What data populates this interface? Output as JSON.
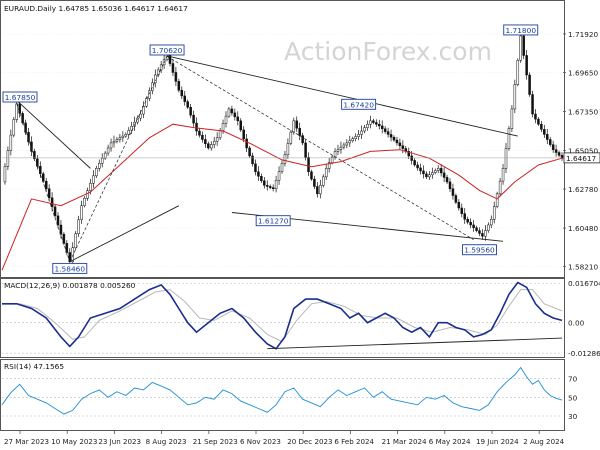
{
  "chart_data": [
    {
      "type": "candlestick",
      "panel": "price",
      "title": "EURAUD.Daily",
      "ohlc_label": "1.64785 1.65036 1.64617 1.64617",
      "watermark": "ActionForex.com",
      "price_axis_ticks": [
        "1.71920",
        "1.69650",
        "1.67350",
        "1.65050",
        "1.64617",
        "1.62780",
        "1.60480",
        "1.58210"
      ],
      "price_axis_values": [
        1.7192,
        1.6965,
        1.6735,
        1.6505,
        1.6278,
        1.6048,
        1.5821
      ],
      "ylim": [
        1.576,
        1.738
      ],
      "last_price": 1.64617,
      "last_price_label": "1.64617",
      "x_axis_labels": [
        "27 Mar 2023",
        "10 May 2023",
        "23 Jun 2023",
        "8 Aug 2023",
        "21 Sep 2023",
        "6 Nov 2023",
        "20 Dec 2023",
        "6 Feb 2024",
        "21 Mar 2024",
        "6 May 2024",
        "19 Jun 2024",
        "2 Aug 2024"
      ],
      "series": [
        {
          "kind": "close",
          "points": [
            [
              0,
              1.632
            ],
            [
              5,
              1.678
            ],
            [
              10,
              1.65
            ],
            [
              15,
              1.628
            ],
            [
              18,
              1.612
            ],
            [
              23,
              1.585
            ],
            [
              27,
              1.618
            ],
            [
              32,
              1.64
            ],
            [
              37,
              1.655
            ],
            [
              42,
              1.66
            ],
            [
              47,
              1.672
            ],
            [
              52,
              1.695
            ],
            [
              56,
              1.707
            ],
            [
              60,
              1.686
            ],
            [
              63,
              1.676
            ],
            [
              66,
              1.662
            ],
            [
              70,
              1.652
            ],
            [
              73,
              1.658
            ],
            [
              77,
              1.675
            ],
            [
              80,
              1.668
            ],
            [
              83,
              1.652
            ],
            [
              86,
              1.638
            ],
            [
              89,
              1.63
            ],
            [
              92,
              1.628
            ],
            [
              96,
              1.648
            ],
            [
              99,
              1.668
            ],
            [
              102,
              1.655
            ],
            [
              104,
              1.638
            ],
            [
              107,
              1.625
            ],
            [
              110,
              1.64
            ],
            [
              113,
              1.65
            ],
            [
              117,
              1.655
            ],
            [
              121,
              1.66
            ],
            [
              125,
              1.668
            ],
            [
              128,
              1.665
            ],
            [
              131,
              1.66
            ],
            [
              134,
              1.655
            ],
            [
              137,
              1.65
            ],
            [
              140,
              1.642
            ],
            [
              144,
              1.635
            ],
            [
              148,
              1.64
            ],
            [
              151,
              1.632
            ],
            [
              154,
              1.62
            ],
            [
              157,
              1.61
            ],
            [
              160,
              1.605
            ],
            [
              163,
              1.6
            ],
            [
              166,
              1.61
            ],
            [
              170,
              1.64
            ],
            [
              173,
              1.675
            ],
            [
              176,
              1.718
            ],
            [
              180,
              1.672
            ],
            [
              184,
              1.66
            ],
            [
              187,
              1.651
            ],
            [
              190,
              1.646
            ]
          ]
        },
        {
          "kind": "moving-average",
          "points": [
            [
              0,
              1.58
            ],
            [
              10,
              1.622
            ],
            [
              20,
              1.618
            ],
            [
              30,
              1.626
            ],
            [
              40,
              1.642
            ],
            [
              50,
              1.658
            ],
            [
              58,
              1.666
            ],
            [
              65,
              1.664
            ],
            [
              75,
              1.662
            ],
            [
              85,
              1.654
            ],
            [
              95,
              1.645
            ],
            [
              105,
              1.641
            ],
            [
              115,
              1.644
            ],
            [
              125,
              1.65
            ],
            [
              135,
              1.651
            ],
            [
              145,
              1.646
            ],
            [
              155,
              1.636
            ],
            [
              162,
              1.627
            ],
            [
              168,
              1.622
            ],
            [
              174,
              1.632
            ],
            [
              182,
              1.642
            ],
            [
              190,
              1.646
            ]
          ]
        }
      ],
      "annotations": [
        {
          "label": "1.67850",
          "value": 1.6785,
          "x": 5
        },
        {
          "label": "1.58460",
          "value": 1.5846,
          "x": 23
        },
        {
          "label": "1.70620",
          "value": 1.7062,
          "x": 56
        },
        {
          "label": "1.61270",
          "value": 1.6127,
          "x": 92
        },
        {
          "label": "1.67420",
          "value": 1.6742,
          "x": 121
        },
        {
          "label": "1.59560",
          "value": 1.5956,
          "x": 162
        },
        {
          "label": "1.71800",
          "value": 1.718,
          "x": 176
        }
      ],
      "trendlines": [
        {
          "from": [
            56,
            1.7062
          ],
          "to": [
            175,
            1.659
          ],
          "style": "solid"
        },
        {
          "from": [
            78,
            1.614
          ],
          "to": [
            170,
            1.597
          ],
          "style": "solid"
        },
        {
          "from": [
            23,
            1.585
          ],
          "to": [
            60,
            1.618
          ],
          "style": "solid"
        },
        {
          "from": [
            5,
            1.68
          ],
          "to": [
            30,
            1.64
          ],
          "style": "solid"
        },
        {
          "from": [
            5,
            1.678
          ],
          "to": [
            23,
            1.585
          ],
          "style": "dashed"
        },
        {
          "from": [
            23,
            1.585
          ],
          "to": [
            56,
            1.706
          ],
          "style": "dashed"
        },
        {
          "from": [
            56,
            1.706
          ],
          "to": [
            160,
            1.598
          ],
          "style": "dashed"
        }
      ]
    },
    {
      "type": "line",
      "panel": "macd",
      "title": "MACD(12,26,9) 0.001878 0.005260",
      "axis_ticks": [
        "0.016704",
        "0.00",
        "-0.012869"
      ],
      "axis_values": [
        0.016704,
        0.0,
        -0.012869
      ],
      "ylim": [
        -0.0145,
        0.0185
      ],
      "series": [
        {
          "name": "MACD",
          "points": [
            [
              0,
              0.008
            ],
            [
              5,
              0.008
            ],
            [
              10,
              0.006
            ],
            [
              15,
              0.002
            ],
            [
              20,
              -0.006
            ],
            [
              23,
              -0.01
            ],
            [
              26,
              -0.006
            ],
            [
              30,
              0.002
            ],
            [
              35,
              0.004
            ],
            [
              40,
              0.006
            ],
            [
              45,
              0.01
            ],
            [
              50,
              0.014
            ],
            [
              54,
              0.016
            ],
            [
              57,
              0.012
            ],
            [
              60,
              0.006
            ],
            [
              63,
              0.0
            ],
            [
              66,
              -0.004
            ],
            [
              70,
              0.0
            ],
            [
              74,
              0.004
            ],
            [
              78,
              0.006
            ],
            [
              82,
              0.002
            ],
            [
              86,
              -0.004
            ],
            [
              90,
              -0.009
            ],
            [
              93,
              -0.011
            ],
            [
              96,
              -0.006
            ],
            [
              99,
              0.006
            ],
            [
              103,
              0.01
            ],
            [
              107,
              0.01
            ],
            [
              111,
              0.008
            ],
            [
              115,
              0.006
            ],
            [
              118,
              0.002
            ],
            [
              121,
              0.004
            ],
            [
              124,
              0.0
            ],
            [
              127,
              0.002
            ],
            [
              130,
              0.004
            ],
            [
              133,
              0.002
            ],
            [
              136,
              -0.002
            ],
            [
              139,
              -0.004
            ],
            [
              142,
              -0.002
            ],
            [
              145,
              -0.006
            ],
            [
              148,
              0.0
            ],
            [
              151,
              0.0
            ],
            [
              154,
              -0.002
            ],
            [
              157,
              -0.003
            ],
            [
              160,
              -0.006
            ],
            [
              163,
              -0.005
            ],
            [
              166,
              -0.003
            ],
            [
              169,
              0.004
            ],
            [
              172,
              0.012
            ],
            [
              175,
              0.017
            ],
            [
              178,
              0.015
            ],
            [
              181,
              0.008
            ],
            [
              184,
              0.004
            ],
            [
              187,
              0.002
            ],
            [
              190,
              0.001
            ]
          ]
        },
        {
          "name": "Signal",
          "points": [
            [
              0,
              0.008
            ],
            [
              6,
              0.008
            ],
            [
              12,
              0.006
            ],
            [
              18,
              0.0
            ],
            [
              24,
              -0.007
            ],
            [
              28,
              -0.006
            ],
            [
              33,
              0.001
            ],
            [
              40,
              0.005
            ],
            [
              46,
              0.009
            ],
            [
              52,
              0.013
            ],
            [
              57,
              0.014
            ],
            [
              62,
              0.009
            ],
            [
              67,
              0.002
            ],
            [
              72,
              0.001
            ],
            [
              78,
              0.005
            ],
            [
              84,
              0.002
            ],
            [
              90,
              -0.005
            ],
            [
              95,
              -0.008
            ],
            [
              100,
              0.001
            ],
            [
              105,
              0.008
            ],
            [
              110,
              0.009
            ],
            [
              116,
              0.007
            ],
            [
              122,
              0.003
            ],
            [
              128,
              0.002
            ],
            [
              134,
              0.002
            ],
            [
              140,
              -0.002
            ],
            [
              146,
              -0.004
            ],
            [
              152,
              -0.002
            ],
            [
              158,
              -0.003
            ],
            [
              164,
              -0.005
            ],
            [
              168,
              -0.001
            ],
            [
              172,
              0.007
            ],
            [
              176,
              0.014
            ],
            [
              180,
              0.014
            ],
            [
              184,
              0.008
            ],
            [
              190,
              0.005
            ]
          ]
        }
      ],
      "trendlines": [
        {
          "from": [
            90,
            -0.011
          ],
          "to": [
            190,
            -0.0065
          ],
          "style": "solid"
        }
      ]
    },
    {
      "type": "line",
      "panel": "rsi",
      "title": "RSI(14) 47.1565",
      "axis_ticks": [
        "70",
        "50",
        "30"
      ],
      "axis_values": [
        70,
        50,
        30
      ],
      "ylim": [
        15,
        90
      ],
      "series": [
        {
          "name": "RSI",
          "points": [
            [
              0,
              42
            ],
            [
              3,
              55
            ],
            [
              6,
              64
            ],
            [
              9,
              52
            ],
            [
              12,
              48
            ],
            [
              15,
              44
            ],
            [
              18,
              38
            ],
            [
              21,
              32
            ],
            [
              24,
              36
            ],
            [
              27,
              48
            ],
            [
              30,
              54
            ],
            [
              33,
              58
            ],
            [
              36,
              50
            ],
            [
              39,
              56
            ],
            [
              42,
              52
            ],
            [
              45,
              60
            ],
            [
              48,
              58
            ],
            [
              51,
              66
            ],
            [
              54,
              62
            ],
            [
              57,
              58
            ],
            [
              60,
              50
            ],
            [
              63,
              42
            ],
            [
              66,
              44
            ],
            [
              69,
              50
            ],
            [
              72,
              48
            ],
            [
              75,
              58
            ],
            [
              78,
              54
            ],
            [
              81,
              46
            ],
            [
              84,
              42
            ],
            [
              87,
              38
            ],
            [
              90,
              34
            ],
            [
              93,
              42
            ],
            [
              96,
              56
            ],
            [
              99,
              60
            ],
            [
              102,
              48
            ],
            [
              105,
              44
            ],
            [
              108,
              40
            ],
            [
              111,
              50
            ],
            [
              114,
              58
            ],
            [
              117,
              52
            ],
            [
              120,
              56
            ],
            [
              123,
              60
            ],
            [
              126,
              50
            ],
            [
              129,
              56
            ],
            [
              132,
              48
            ],
            [
              135,
              46
            ],
            [
              138,
              44
            ],
            [
              141,
              42
            ],
            [
              144,
              50
            ],
            [
              147,
              48
            ],
            [
              150,
              52
            ],
            [
              153,
              44
            ],
            [
              156,
              40
            ],
            [
              159,
              38
            ],
            [
              162,
              36
            ],
            [
              165,
              42
            ],
            [
              168,
              56
            ],
            [
              171,
              66
            ],
            [
              174,
              74
            ],
            [
              176,
              82
            ],
            [
              178,
              72
            ],
            [
              180,
              64
            ],
            [
              182,
              68
            ],
            [
              184,
              58
            ],
            [
              186,
              52
            ],
            [
              188,
              49
            ],
            [
              190,
              47
            ]
          ]
        }
      ]
    }
  ]
}
